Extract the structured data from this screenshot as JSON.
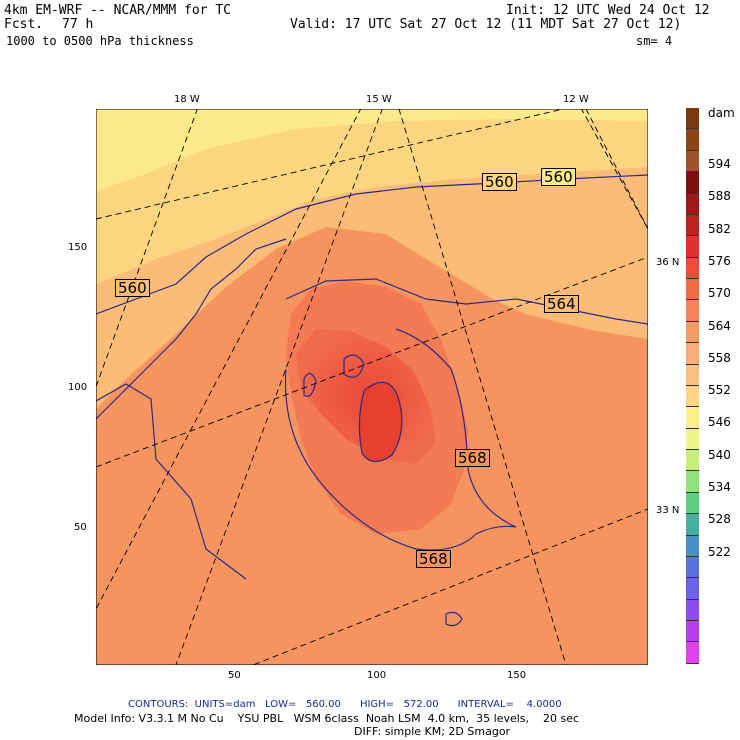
{
  "header": {
    "model": "4km EM-WRF -- NCAR/MMM for TC",
    "init": "Init: 12 UTC Wed 24 Oct 12",
    "fcst_label": "Fcst.",
    "fcst_value": "77 h",
    "valid": "Valid: 17 UTC Sat 27 Oct 12 (11 MDT Sat 27 Oct 12)",
    "field": "1000 to 0500 hPa thickness",
    "smoothing": "sm= 4"
  },
  "axes": {
    "top_lon_labels": [
      "18 W",
      "15 W",
      "12 W"
    ],
    "right_lat_labels": [
      "36 N",
      "33 N"
    ],
    "left_ticks": [
      "150",
      "100",
      "50"
    ],
    "bottom_ticks": [
      "50",
      "100",
      "150"
    ]
  },
  "contour_labels": [
    "560",
    "560",
    "560",
    "564",
    "568",
    "568"
  ],
  "colorbar": {
    "unit": "dam",
    "labels": [
      "594",
      "588",
      "582",
      "576",
      "570",
      "564",
      "558",
      "552",
      "546",
      "540",
      "534",
      "528",
      "522"
    ],
    "colors": [
      "#7a3a10",
      "#8b4513",
      "#a0522d",
      "#7d1010",
      "#a01818",
      "#c02020",
      "#e03030",
      "#f04a3a",
      "#f46a46",
      "#f6845a",
      "#f89a66",
      "#f9ae78",
      "#fbbf82",
      "#fdd488",
      "#fdf08a",
      "#f0f58a",
      "#c8ef7a",
      "#90e27a",
      "#5ccf84",
      "#46b0a0",
      "#4a8ec8",
      "#5a72e0",
      "#6a60ee",
      "#8c4af2",
      "#b640f0",
      "#e040ee"
    ]
  },
  "footer": {
    "contours": "CONTOURS:  UNITS=dam   LOW=   560.00      HIGH=   572.00      INTERVAL=    4.0000",
    "model_info": "Model Info: V3.3.1 M No Cu    YSU PBL   WSM 6class  Noah LSM  4.0 km,  35 levels,    20 sec",
    "diff": "DIFF: simple KM; 2D Smagor"
  }
}
